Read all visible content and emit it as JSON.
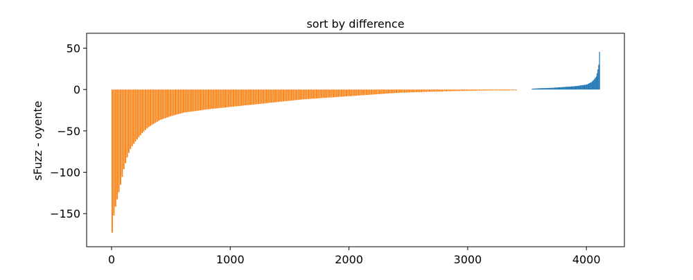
{
  "chart_data": {
    "type": "bar",
    "title": "sort by difference",
    "xlabel": "",
    "ylabel": "sFuzz - oyente",
    "xlim": [
      -210,
      4320
    ],
    "ylim": [
      -190,
      68
    ],
    "xticks": [
      0,
      1000,
      2000,
      3000,
      4000
    ],
    "yticks": [
      50,
      0,
      -50,
      -100,
      -150
    ],
    "ytick_labels": [
      "50",
      "0",
      "−50",
      "−100",
      "−150"
    ],
    "grid": false,
    "colors": {
      "negative": "#ff7f0e",
      "positive": "#1f77b4"
    },
    "negative_profile": {
      "x": [
        0,
        10,
        20,
        30,
        50,
        70,
        100,
        130,
        160,
        200,
        250,
        300,
        400,
        500,
        600,
        700,
        800,
        1000,
        1200,
        1400,
        1600,
        1800,
        2000,
        2200,
        2400,
        2600,
        2800,
        3000,
        3200,
        3410
      ],
      "y": [
        -173,
        -155,
        -148,
        -140,
        -128,
        -115,
        -95,
        -80,
        -70,
        -62,
        -53,
        -46,
        -37,
        -32,
        -28,
        -26,
        -24,
        -21,
        -18,
        -15,
        -12,
        -10,
        -8,
        -6,
        -4,
        -3,
        -2.2,
        -1.5,
        -1,
        -1
      ]
    },
    "positive_profile": {
      "x": [
        3540,
        3600,
        3700,
        3800,
        3900,
        4000,
        4040,
        4060,
        4080,
        4090,
        4100,
        4108
      ],
      "y": [
        1,
        1.5,
        2,
        3,
        4,
        6,
        9,
        12,
        16,
        22,
        30,
        48
      ]
    }
  }
}
